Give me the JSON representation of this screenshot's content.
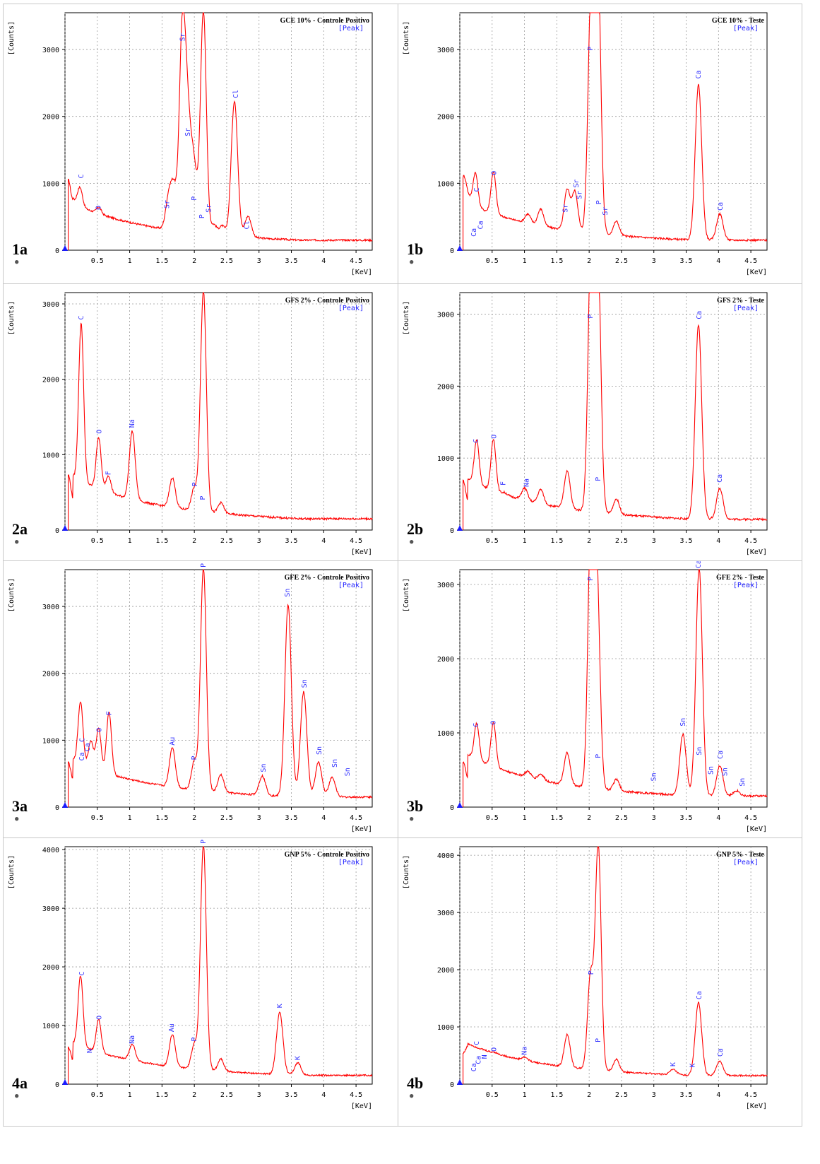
{
  "y_axis_label": "[Counts]",
  "x_axis_unit": "[KeV]",
  "subtitle": "[Peak]",
  "spectrum_color": "#ff0000",
  "label_color": "#3333ff",
  "grid": true,
  "x_ticks": [
    "0.5",
    "1",
    "1.5",
    "2",
    "2.5",
    "3",
    "3.5",
    "4",
    "4.5"
  ],
  "panels": [
    {
      "id": "1a",
      "title": "GCE 10% - Controle Positivo",
      "ymax": 3550,
      "yticks": [
        0,
        1000,
        2000,
        3000
      ],
      "peaks": [
        [
          0.05,
          980
        ],
        [
          0.14,
          620
        ],
        [
          0.23,
          840
        ],
        [
          0.52,
          560
        ],
        [
          1.6,
          720
        ],
        [
          1.68,
          880
        ],
        [
          1.81,
          3000
        ],
        [
          1.88,
          1800
        ],
        [
          1.95,
          1000
        ],
        [
          2.01,
          900
        ],
        [
          2.14,
          3550
        ],
        [
          2.3,
          350
        ],
        [
          2.43,
          330
        ],
        [
          2.62,
          2200
        ],
        [
          2.83,
          480
        ]
      ],
      "labels": [
        [
          "C",
          0.25,
          1030
        ],
        [
          "O",
          0.52,
          560
        ],
        [
          "Sr",
          1.58,
          580
        ],
        [
          "Sr",
          1.82,
          3080
        ],
        [
          "Sr",
          1.9,
          1660
        ],
        [
          "P",
          2.0,
          700
        ],
        [
          "P",
          2.12,
          430
        ],
        [
          "Sr",
          2.22,
          520
        ],
        [
          "Cl",
          2.64,
          2230
        ],
        [
          "Cl",
          2.81,
          270
        ]
      ]
    },
    {
      "id": "1b",
      "title": "GCE 10% - Teste",
      "ymax": 3550,
      "yticks": [
        0,
        1000,
        2000,
        3000
      ],
      "peaks": [
        [
          0.05,
          960
        ],
        [
          0.12,
          720
        ],
        [
          0.24,
          1060
        ],
        [
          0.52,
          1090
        ],
        [
          1.05,
          480
        ],
        [
          1.25,
          560
        ],
        [
          1.66,
          860
        ],
        [
          1.78,
          830
        ],
        [
          2.02,
          2950
        ],
        [
          2.08,
          2500
        ],
        [
          2.14,
          3550
        ],
        [
          2.42,
          400
        ],
        [
          3.69,
          2450
        ],
        [
          4.02,
          520
        ]
      ],
      "labels": [
        [
          "Ca",
          0.22,
          160
        ],
        [
          "Ca",
          0.32,
          270
        ],
        [
          "C",
          0.26,
          830
        ],
        [
          "O",
          0.53,
          1080
        ],
        [
          "Sr",
          1.63,
          520
        ],
        [
          "Sr",
          1.8,
          890
        ],
        [
          "Sr",
          1.85,
          720
        ],
        [
          "P",
          2.02,
          2940
        ],
        [
          "P",
          2.15,
          640
        ],
        [
          "Sr",
          2.25,
          480
        ],
        [
          "Ca",
          3.69,
          2520
        ],
        [
          "Ca",
          4.03,
          550
        ]
      ]
    },
    {
      "id": "2a",
      "title": "GFS 2% - Controle Positivo",
      "ymax": 3150,
      "yticks": [
        0,
        1000,
        2000,
        3000
      ],
      "peaks": [
        [
          0.05,
          680
        ],
        [
          0.25,
          2650
        ],
        [
          0.52,
          1150
        ],
        [
          0.67,
          650
        ],
        [
          1.04,
          1250
        ],
        [
          1.66,
          650
        ],
        [
          2.0,
          520
        ],
        [
          2.14,
          3150
        ],
        [
          2.41,
          330
        ]
      ],
      "labels": [
        [
          "C",
          0.25,
          2750
        ],
        [
          "O",
          0.53,
          1240
        ],
        [
          "F",
          0.67,
          690
        ],
        [
          "Na",
          1.04,
          1320
        ],
        [
          "P",
          2.01,
          540
        ],
        [
          "P",
          2.13,
          360
        ]
      ]
    },
    {
      "id": "2b",
      "title": "GFS 2% - Teste",
      "ymax": 3300,
      "yticks": [
        0,
        1000,
        2000,
        3000
      ],
      "peaks": [
        [
          0.05,
          640
        ],
        [
          0.26,
          1150
        ],
        [
          0.52,
          1180
        ],
        [
          0.68,
          450
        ],
        [
          1.0,
          520
        ],
        [
          1.25,
          510
        ],
        [
          1.66,
          780
        ],
        [
          2.02,
          2900
        ],
        [
          2.07,
          2450
        ],
        [
          2.14,
          3300
        ],
        [
          2.42,
          400
        ],
        [
          3.69,
          2830
        ],
        [
          4.02,
          560
        ]
      ],
      "labels": [
        [
          "C",
          0.25,
          1170
        ],
        [
          "O",
          0.53,
          1230
        ],
        [
          "F",
          0.67,
          580
        ],
        [
          "Na",
          1.03,
          560
        ],
        [
          "P",
          2.02,
          2900
        ],
        [
          "P",
          2.14,
          640
        ],
        [
          "Ca",
          3.7,
          2890
        ],
        [
          "Ca",
          4.02,
          620
        ]
      ]
    },
    {
      "id": "3a",
      "title": "GFE 2% - Controle Positivo",
      "ymax": 3550,
      "yticks": [
        0,
        1000,
        2000,
        3000
      ],
      "peaks": [
        [
          0.05,
          620
        ],
        [
          0.24,
          1480
        ],
        [
          0.4,
          900
        ],
        [
          0.52,
          1100
        ],
        [
          0.68,
          1350
        ],
        [
          1.66,
          850
        ],
        [
          2.0,
          650
        ],
        [
          2.14,
          3550
        ],
        [
          2.41,
          450
        ],
        [
          3.05,
          440
        ],
        [
          3.45,
          3000
        ],
        [
          3.69,
          1700
        ],
        [
          3.92,
          650
        ],
        [
          4.13,
          420
        ]
      ],
      "labels": [
        [
          "Ca",
          0.26,
          650
        ],
        [
          "C",
          0.27,
          930
        ],
        [
          "Ca",
          0.35,
          790
        ],
        [
          "O",
          0.53,
          1080
        ],
        [
          "F",
          0.68,
          1330
        ],
        [
          "Au",
          1.66,
          880
        ],
        [
          "P",
          2.0,
          660
        ],
        [
          "P",
          2.14,
          3540
        ],
        [
          "Sn",
          3.07,
          480
        ],
        [
          "Sn",
          3.44,
          3100
        ],
        [
          "Sn",
          3.7,
          1740
        ],
        [
          "Sn",
          3.93,
          740
        ],
        [
          "Sn",
          4.17,
          550
        ],
        [
          "Sn",
          4.37,
          420
        ]
      ]
    },
    {
      "id": "3b",
      "title": "GFE 2% - Teste",
      "ymax": 3200,
      "yticks": [
        0,
        1000,
        2000,
        3000
      ],
      "peaks": [
        [
          0.05,
          560
        ],
        [
          0.26,
          1030
        ],
        [
          0.52,
          1060
        ],
        [
          1.05,
          420
        ],
        [
          1.25,
          390
        ],
        [
          1.66,
          690
        ],
        [
          2.02,
          3000
        ],
        [
          2.07,
          2150
        ],
        [
          2.13,
          2300
        ],
        [
          2.42,
          340
        ],
        [
          3.45,
          960
        ],
        [
          3.7,
          3200
        ],
        [
          4.02,
          540
        ],
        [
          4.28,
          200
        ]
      ],
      "labels": [
        [
          "C",
          0.25,
          1040
        ],
        [
          "O",
          0.52,
          1070
        ],
        [
          "P",
          2.02,
          3010
        ],
        [
          "P",
          2.14,
          620
        ],
        [
          "Sn",
          3.0,
          310
        ],
        [
          "Sn",
          3.45,
          1050
        ],
        [
          "Ca",
          3.69,
          3180
        ],
        [
          "Sn",
          3.7,
          660
        ],
        [
          "Sn",
          3.88,
          400
        ],
        [
          "Ca",
          4.03,
          610
        ],
        [
          "Sn",
          4.1,
          380
        ],
        [
          "Sn",
          4.37,
          240
        ]
      ]
    },
    {
      "id": "4a",
      "title": "GNP 5% - Controle Positivo",
      "ymax": 4050,
      "yticks": [
        0,
        1000,
        2000,
        3000,
        4000
      ],
      "peaks": [
        [
          0.05,
          580
        ],
        [
          0.24,
          1750
        ],
        [
          0.52,
          1020
        ],
        [
          1.04,
          620
        ],
        [
          1.66,
          800
        ],
        [
          2.0,
          650
        ],
        [
          2.14,
          4050
        ],
        [
          2.41,
          400
        ],
        [
          3.32,
          1200
        ],
        [
          3.6,
          340
        ]
      ],
      "labels": [
        [
          "C",
          0.26,
          1800
        ],
        [
          "N",
          0.38,
          480
        ],
        [
          "O",
          0.53,
          1050
        ],
        [
          "Na",
          1.04,
          640
        ],
        [
          "Au",
          1.65,
          840
        ],
        [
          "P",
          2.0,
          680
        ],
        [
          "P",
          2.14,
          4060
        ],
        [
          "K",
          3.32,
          1250
        ],
        [
          "K",
          3.6,
          360
        ]
      ]
    },
    {
      "id": "4b",
      "title": "GNP 5% - Teste",
      "ymax": 4150,
      "yticks": [
        0,
        1000,
        2000,
        3000,
        4000
      ],
      "peaks": [
        [
          0.05,
          450
        ],
        [
          0.13,
          590
        ],
        [
          0.25,
          480
        ],
        [
          0.52,
          480
        ],
        [
          1.0,
          410
        ],
        [
          1.66,
          820
        ],
        [
          2.02,
          1850
        ],
        [
          2.14,
          4150
        ],
        [
          2.42,
          400
        ],
        [
          3.3,
          230
        ],
        [
          3.69,
          1400
        ],
        [
          4.02,
          380
        ]
      ],
      "labels": [
        [
          "C",
          0.26,
          630
        ],
        [
          "Ca",
          0.22,
          170
        ],
        [
          "Ca",
          0.29,
          300
        ],
        [
          "N",
          0.38,
          390
        ],
        [
          "O",
          0.53,
          520
        ],
        [
          "Na",
          1.0,
          460
        ],
        [
          "P",
          2.03,
          1860
        ],
        [
          "P",
          2.14,
          680
        ],
        [
          "K",
          3.3,
          260
        ],
        [
          "K",
          3.6,
          240
        ],
        [
          "Ca",
          3.7,
          1430
        ],
        [
          "Ca",
          4.03,
          430
        ]
      ]
    }
  ]
}
